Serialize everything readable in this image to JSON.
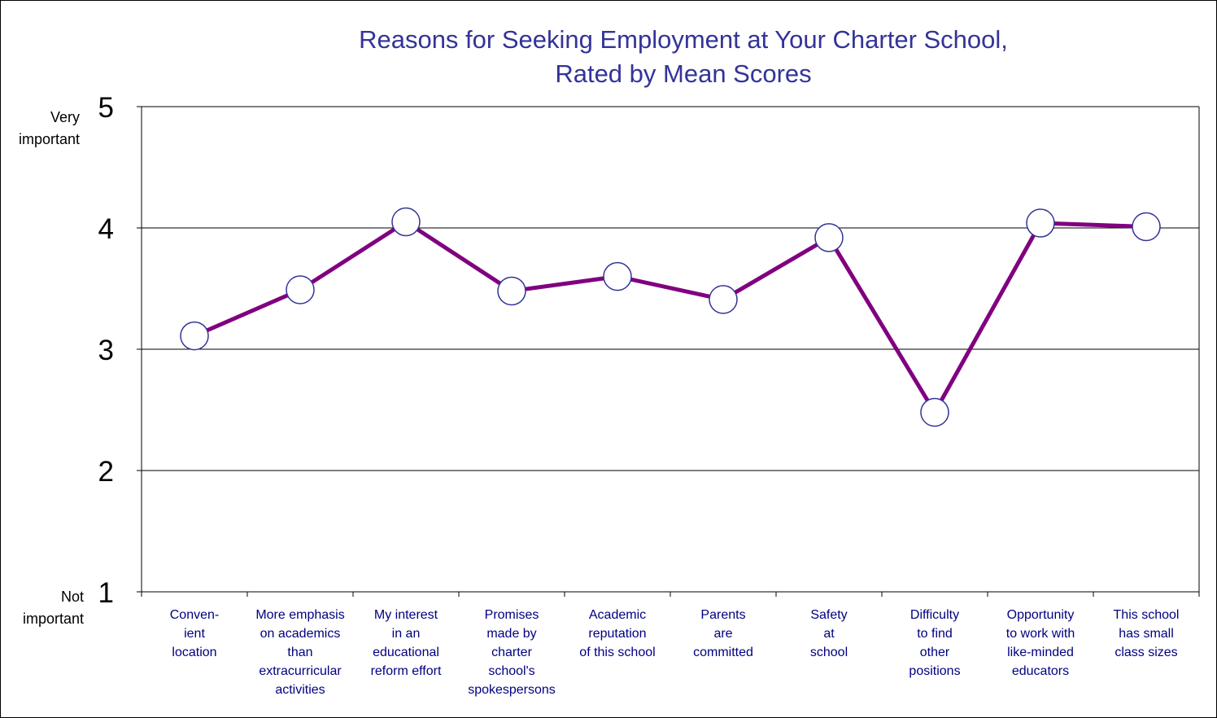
{
  "chart_data": {
    "type": "line",
    "title": "Reasons for Seeking Employment at Your Charter School,\nRated by Mean Scores",
    "xlabel": "",
    "ylabel": "",
    "ylim": [
      1,
      5
    ],
    "yticks": [
      "1",
      "2",
      "3",
      "4",
      "5"
    ],
    "y_anchor_top": "Very\nimportant",
    "y_anchor_bottom": "Not\nimportant",
    "grid": true,
    "legend": "none",
    "categories": [
      "Conven-\nient\nlocation",
      "More emphasis\non academics\nthan\nextracurricular\nactivities",
      "My interest\nin an\neducational\nreform effort",
      "Promises\nmade by\ncharter\nschool's\nspokespersons",
      "Academic\nreputation\nof this school",
      "Parents\nare\ncommitted",
      "Safety\nat\nschool",
      "Difficulty\nto find\nother\npositions",
      "Opportunity\nto work with\nlike-minded\neducators",
      "This school\nhas small\nclass sizes"
    ],
    "series": [
      {
        "values": [
          3.11,
          3.49,
          4.05,
          3.48,
          3.6,
          3.41,
          3.92,
          2.48,
          4.04,
          4.01
        ]
      }
    ],
    "colors": {
      "line": "#800080",
      "marker_fill": "#ffffff",
      "marker_stroke": "#333399",
      "title": "#333399",
      "category_labels": "#000080",
      "grid": "#000000"
    }
  }
}
